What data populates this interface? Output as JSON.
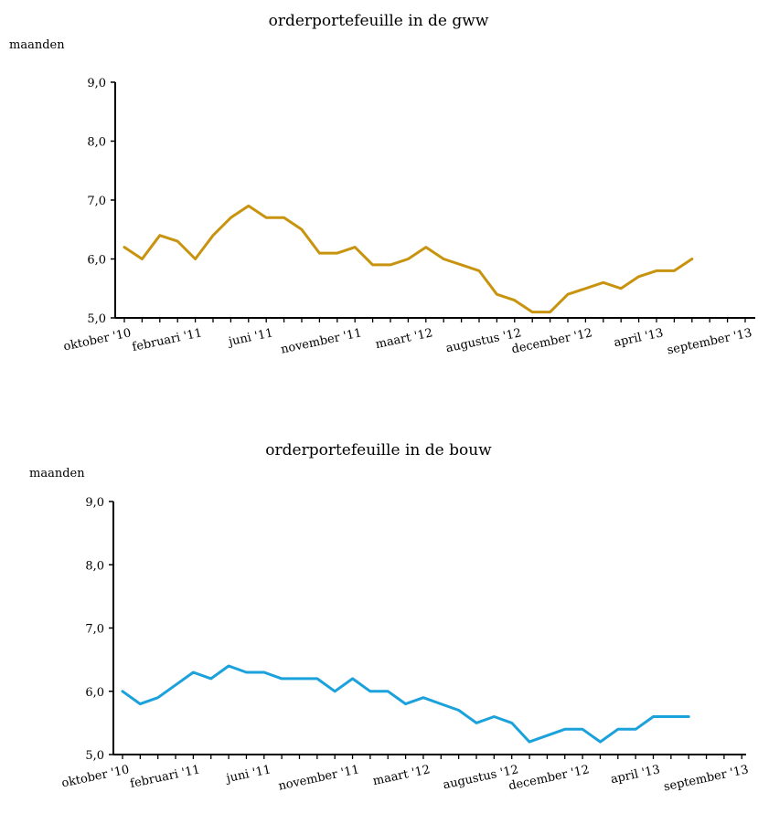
{
  "chart_data": [
    {
      "type": "line",
      "title": "orderportefeuille in de gww",
      "ylabel": "maanden",
      "xlabel": "",
      "ylim": [
        5.0,
        9.0
      ],
      "y_ticks": [
        "5,0",
        "6,0",
        "7,0",
        "8,0",
        "9,0"
      ],
      "y_tick_values": [
        5.0,
        6.0,
        7.0,
        8.0,
        9.0
      ],
      "x_tick_labels": [
        "oktober '10",
        "februari '11",
        "juni '11",
        "november '11",
        "maart '12",
        "augustus '12",
        "december '12",
        "april '13",
        "september '13"
      ],
      "x_tick_positions": [
        0,
        4,
        8,
        13,
        17,
        22,
        26,
        30,
        35
      ],
      "grid": false,
      "series": [
        {
          "color": "#C8940F",
          "values": [
            6.2,
            6.0,
            6.4,
            6.3,
            6.0,
            6.4,
            6.7,
            6.9,
            6.7,
            6.7,
            6.5,
            6.1,
            6.1,
            6.2,
            5.9,
            5.9,
            6.0,
            6.2,
            6.0,
            5.9,
            5.8,
            5.4,
            5.3,
            5.1,
            5.1,
            5.4,
            5.5,
            5.6,
            5.5,
            5.7,
            5.8,
            5.8,
            6.0
          ]
        }
      ]
    },
    {
      "type": "line",
      "title": "orderportefeuille in de bouw",
      "ylabel": "maanden",
      "xlabel": "",
      "ylim": [
        5.0,
        9.0
      ],
      "y_ticks": [
        "5,0",
        "6,0",
        "7,0",
        "8,0",
        "9,0"
      ],
      "y_tick_values": [
        5.0,
        6.0,
        7.0,
        8.0,
        9.0
      ],
      "x_tick_labels": [
        "oktober '10",
        "februari '11",
        "juni '11",
        "november '11",
        "maart '12",
        "augustus '12",
        "december '12",
        "april '13",
        "september '13"
      ],
      "x_tick_positions": [
        0,
        4,
        8,
        13,
        17,
        22,
        26,
        30,
        35
      ],
      "grid": false,
      "series": [
        {
          "color": "#1BA1DB",
          "values": [
            6.0,
            5.8,
            5.9,
            6.1,
            6.3,
            6.2,
            6.4,
            6.3,
            6.3,
            6.2,
            6.2,
            6.2,
            6.0,
            6.2,
            6.0,
            6.0,
            5.8,
            5.9,
            5.8,
            5.7,
            5.5,
            5.6,
            5.5,
            5.2,
            5.3,
            5.4,
            5.4,
            5.2,
            5.4,
            5.4,
            5.6,
            5.6,
            5.6
          ]
        }
      ]
    }
  ]
}
